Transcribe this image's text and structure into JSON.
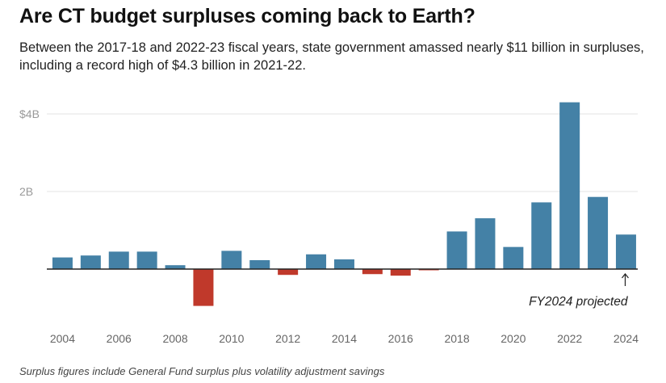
{
  "title": "Are CT budget surpluses coming back to Earth?",
  "subtitle": "Between the 2017-18 and 2022-23 fiscal years, state government amassed nearly $11 billion in surpluses, including a record high of $4.3 billion in 2021-22.",
  "footnote": "Surplus figures include General Fund surplus plus volatility adjustment savings",
  "annotation": {
    "text": "FY2024 projected",
    "year": 2024
  },
  "colors": {
    "positive": "#4481a6",
    "negative": "#c0392b",
    "grid": "#e3e3e3",
    "axis": "#222222",
    "tick_text": "#999999"
  },
  "chart_data": {
    "type": "bar",
    "title": "Are CT budget surpluses coming back to Earth?",
    "xlabel": "",
    "ylabel": "",
    "categories": [
      2004,
      2005,
      2006,
      2007,
      2008,
      2009,
      2010,
      2011,
      2012,
      2013,
      2014,
      2015,
      2016,
      2017,
      2018,
      2019,
      2020,
      2021,
      2022,
      2023,
      2024
    ],
    "values": [
      0.3,
      0.35,
      0.45,
      0.45,
      0.1,
      -0.95,
      0.47,
      0.23,
      -0.15,
      0.38,
      0.25,
      -0.13,
      -0.17,
      -0.02,
      0.97,
      1.31,
      0.57,
      1.72,
      4.3,
      1.86,
      0.89
    ],
    "ylim": [
      -1.5,
      4.6
    ],
    "yticks": [
      {
        "value": 4,
        "label": "$4B"
      },
      {
        "value": 2,
        "label": "2B"
      }
    ],
    "xtick_labels": [
      "2004",
      "2006",
      "2008",
      "2010",
      "2012",
      "2014",
      "2016",
      "2018",
      "2020",
      "2022",
      "2024"
    ],
    "grid": true,
    "legend": "none"
  }
}
